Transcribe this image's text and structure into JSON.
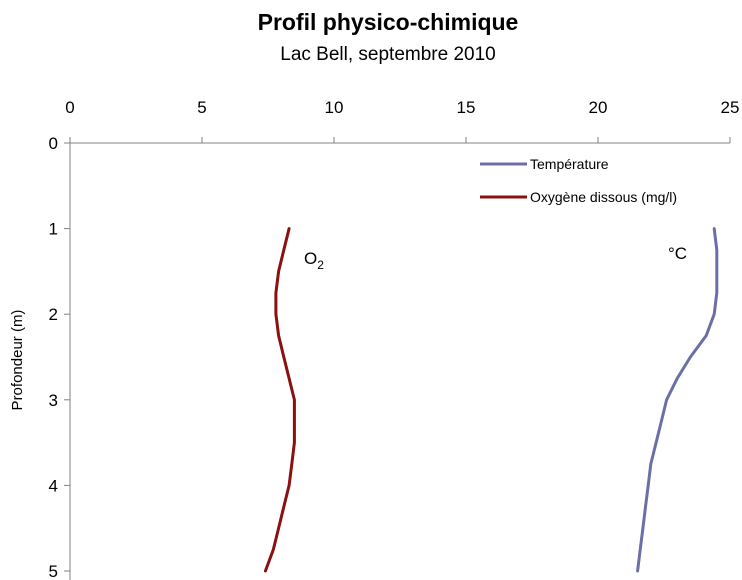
{
  "chart_data": {
    "type": "line",
    "title": "Profil physico-chimique",
    "subtitle": "Lac Bell, septembre 2010",
    "xlabel": "",
    "ylabel": "Profondeur (m)",
    "xlim": [
      0,
      25
    ],
    "ylim": [
      0,
      5
    ],
    "x_axis_position": "top",
    "y_inverted": true,
    "x_ticks": [
      "0",
      "5",
      "10",
      "15",
      "20",
      "25"
    ],
    "y_ticks": [
      "0",
      "1",
      "2",
      "3",
      "4",
      "5"
    ],
    "grid": false,
    "legend": {
      "position": "top-right"
    },
    "series": [
      {
        "name": "Température",
        "color": "#6b6fa8",
        "annotation": "°C",
        "points": [
          {
            "x": 24.4,
            "depth": 1.0
          },
          {
            "x": 24.5,
            "depth": 1.25
          },
          {
            "x": 24.5,
            "depth": 1.5
          },
          {
            "x": 24.5,
            "depth": 1.75
          },
          {
            "x": 24.4,
            "depth": 2.0
          },
          {
            "x": 24.1,
            "depth": 2.25
          },
          {
            "x": 23.5,
            "depth": 2.5
          },
          {
            "x": 23.0,
            "depth": 2.75
          },
          {
            "x": 22.6,
            "depth": 3.0
          },
          {
            "x": 22.4,
            "depth": 3.25
          },
          {
            "x": 22.2,
            "depth": 3.5
          },
          {
            "x": 22.0,
            "depth": 3.75
          },
          {
            "x": 21.9,
            "depth": 4.0
          },
          {
            "x": 21.8,
            "depth": 4.25
          },
          {
            "x": 21.7,
            "depth": 4.5
          },
          {
            "x": 21.6,
            "depth": 4.75
          },
          {
            "x": 21.5,
            "depth": 5.0
          }
        ]
      },
      {
        "name": "Oxygène dissous (mg/l)",
        "color": "#8b1010",
        "annotation": "O",
        "annotation_sub": "2",
        "points": [
          {
            "x": 8.3,
            "depth": 1.0
          },
          {
            "x": 8.1,
            "depth": 1.25
          },
          {
            "x": 7.9,
            "depth": 1.5
          },
          {
            "x": 7.8,
            "depth": 1.75
          },
          {
            "x": 7.8,
            "depth": 2.0
          },
          {
            "x": 7.9,
            "depth": 2.25
          },
          {
            "x": 8.1,
            "depth": 2.5
          },
          {
            "x": 8.3,
            "depth": 2.75
          },
          {
            "x": 8.5,
            "depth": 3.0
          },
          {
            "x": 8.5,
            "depth": 3.25
          },
          {
            "x": 8.5,
            "depth": 3.5
          },
          {
            "x": 8.4,
            "depth": 3.75
          },
          {
            "x": 8.3,
            "depth": 4.0
          },
          {
            "x": 8.1,
            "depth": 4.25
          },
          {
            "x": 7.9,
            "depth": 4.5
          },
          {
            "x": 7.7,
            "depth": 4.75
          },
          {
            "x": 7.4,
            "depth": 5.0
          }
        ]
      }
    ]
  }
}
